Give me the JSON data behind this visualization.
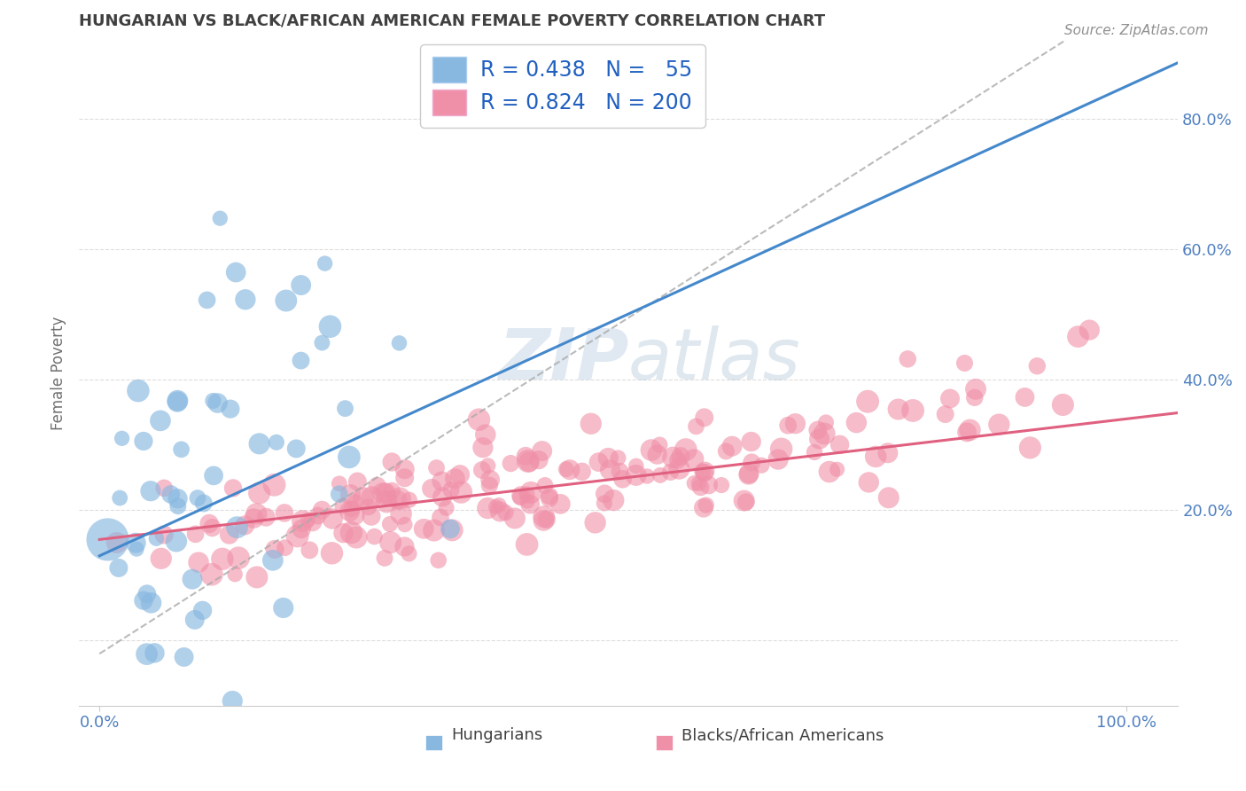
{
  "title": "HUNGARIAN VS BLACK/AFRICAN AMERICAN FEMALE POVERTY CORRELATION CHART",
  "source": "Source: ZipAtlas.com",
  "ylabel": "Female Poverty",
  "xlim": [
    -0.02,
    1.05
  ],
  "ylim": [
    -0.1,
    0.92
  ],
  "xtick_positions": [
    0.0,
    1.0
  ],
  "xticklabels": [
    "0.0%",
    "100.0%"
  ],
  "ytick_positions": [
    0.0,
    0.2,
    0.4,
    0.6,
    0.8
  ],
  "yticklabels": [
    "",
    "20.0%",
    "40.0%",
    "60.0%",
    "80.0%"
  ],
  "legend_label1": "Hungarians",
  "legend_label2": "Blacks/African Americans",
  "hungarian_color": "#88b8e0",
  "black_color": "#f090a8",
  "trend_hungarian_color": "#4488cc",
  "trend_black_color": "#e06080",
  "dashed_line_color": "#aaaaaa",
  "watermark": "ZIPatlas",
  "background_color": "#ffffff",
  "grid_color": "#dddddd",
  "title_color": "#404040",
  "axis_label_color": "#707070",
  "tick_label_color": "#5080c0",
  "legend_r_color": "#2060c0",
  "title_fontsize": 13,
  "legend_fontsize": 17,
  "tick_fontsize": 13,
  "ylabel_fontsize": 12,
  "source_fontsize": 11
}
